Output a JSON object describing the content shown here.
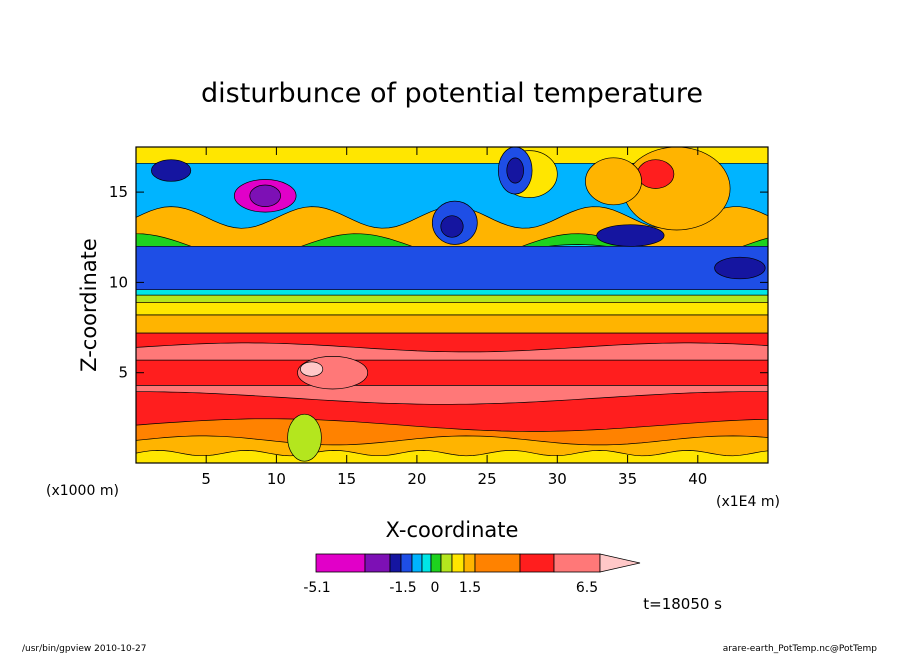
{
  "chart_data": {
    "type": "heatmap",
    "title": "disturbunce of potential temperature",
    "xlabel": "X-coordinate",
    "ylabel": "Z-coordinate",
    "x_unit_left": "(x1000 m)",
    "x_unit_right": "(x1E4 m)",
    "xlim": [
      0,
      45
    ],
    "ylim": [
      0,
      17.5
    ],
    "x_ticks": [
      5,
      10,
      15,
      20,
      25,
      30,
      35,
      40
    ],
    "y_ticks": [
      5,
      10,
      15
    ],
    "colorbar": {
      "colors": [
        "#e100c8",
        "#7d10b5",
        "#1515a0",
        "#1e4ee6",
        "#00b4ff",
        "#00e6e6",
        "#1ed21e",
        "#b4e61e",
        "#ffe600",
        "#ffb400",
        "#ff8200",
        "#ff1e1e",
        "#ff7878",
        "#ffc8c8"
      ],
      "tick_labels": [
        "-5.1",
        "-1.5",
        "0",
        "1.5",
        "6.5"
      ],
      "tick_values": [
        -5.1,
        -1.5,
        0,
        1.5,
        6.5
      ]
    },
    "annotation_time": "t=18050 s"
  },
  "footer": {
    "left": "/usr/bin/gpview  2010-10-27",
    "right": "arare-earth_PotTemp.nc@PotTemp"
  }
}
